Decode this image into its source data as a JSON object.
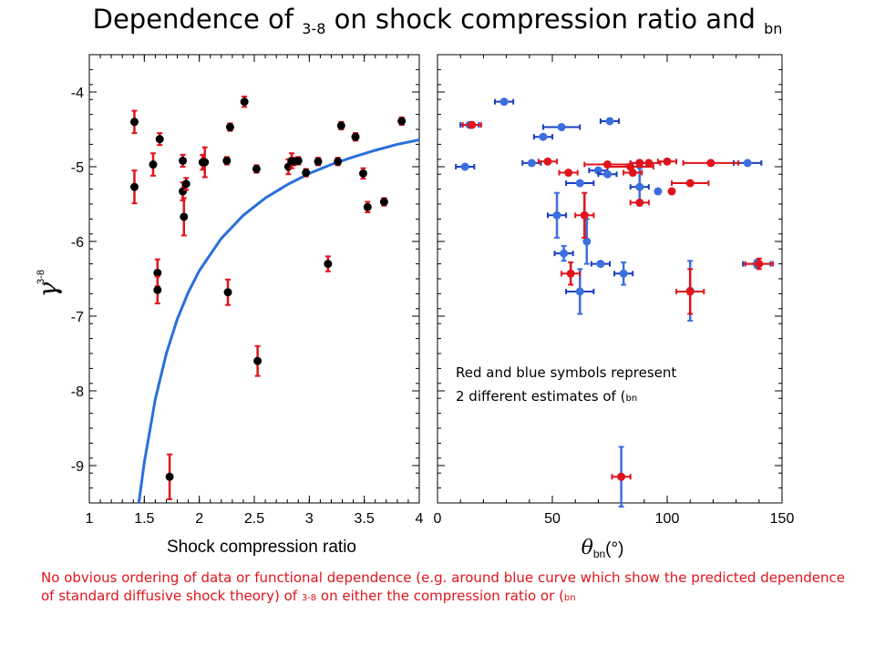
{
  "title": {
    "prefix": "Dependence of ",
    "gamma_symbol": "",
    "gamma_sub": "3-8",
    "middle": " on shock compression ratio and ",
    "theta_symbol": "",
    "theta_sub": "bn"
  },
  "annotation": {
    "line1": "Red and blue symbols represent",
    "line2_prefix": "2 different estimates of ",
    "symbol": "(",
    "sub": "bn"
  },
  "footnote": {
    "text": "No obvious ordering of data or functional dependence (e.g. around  blue curve which show the predicted dependence of standard diffusive shock theory) of ",
    "gamma_symbol": "",
    "gamma_sub": "3-8",
    "middle": " on either the compression ratio or ",
    "theta_symbol": "(",
    "theta_sub": "bn"
  },
  "colors": {
    "red": "#e0141c",
    "blue": "#3b6fe0",
    "black": "#000000",
    "curve": "#2a6fdb"
  },
  "chart_data": [
    {
      "type": "scatter",
      "xlabel": "Shock compression ratio",
      "ylabel_symbol": "γ",
      "ylabel_sub": "3-8",
      "xlim": [
        1,
        4
      ],
      "ylim": [
        -9.5,
        -3.5
      ],
      "xticks": [
        1,
        1.5,
        2,
        2.5,
        3,
        3.5,
        4
      ],
      "xtick_labels": [
        "1",
        "1.5",
        "2",
        "2.5",
        "3",
        "3.5",
        "4"
      ],
      "yticks": [
        -9,
        -8,
        -7,
        -6,
        -5,
        -4
      ],
      "ytick_labels": [
        "-9",
        "-8",
        "-7",
        "-6",
        "-5",
        "-4"
      ],
      "curve": {
        "name": "predicted dependence of standard diffusive shock theory",
        "x": [
          1.45,
          1.5,
          1.6,
          1.7,
          1.8,
          1.9,
          2.0,
          2.2,
          2.4,
          2.6,
          2.8,
          3.0,
          3.2,
          3.4,
          3.6,
          3.8,
          4.0
        ],
        "y": [
          -9.5,
          -8.96,
          -8.11,
          -7.5,
          -7.04,
          -6.68,
          -6.39,
          -5.96,
          -5.65,
          -5.42,
          -5.24,
          -5.09,
          -4.97,
          -4.87,
          -4.78,
          -4.7,
          -4.64
        ]
      },
      "points": [
        {
          "x": 1.41,
          "y": -4.4,
          "err": 0.15
        },
        {
          "x": 1.41,
          "y": -5.27,
          "err": 0.22
        },
        {
          "x": 1.58,
          "y": -4.97,
          "err": 0.15
        },
        {
          "x": 1.62,
          "y": -6.42,
          "err": 0.18
        },
        {
          "x": 1.62,
          "y": -6.65,
          "err": 0.18
        },
        {
          "x": 1.64,
          "y": -4.63,
          "err": 0.08
        },
        {
          "x": 1.73,
          "y": -9.15,
          "err": 0.3
        },
        {
          "x": 1.85,
          "y": -4.92,
          "err": 0.08
        },
        {
          "x": 1.85,
          "y": -5.33,
          "err": 0.12
        },
        {
          "x": 1.86,
          "y": -5.67,
          "err": 0.25
        },
        {
          "x": 1.88,
          "y": -5.23,
          "err": 0.08
        },
        {
          "x": 2.03,
          "y": -4.94,
          "err": 0.1
        },
        {
          "x": 2.05,
          "y": -4.94,
          "err": 0.2
        },
        {
          "x": 2.25,
          "y": -4.92,
          "err": 0.05
        },
        {
          "x": 2.26,
          "y": -6.68,
          "err": 0.17
        },
        {
          "x": 2.28,
          "y": -4.47,
          "err": 0.05
        },
        {
          "x": 2.41,
          "y": -4.13,
          "err": 0.07
        },
        {
          "x": 2.52,
          "y": -5.03,
          "err": 0.05
        },
        {
          "x": 2.53,
          "y": -7.6,
          "err": 0.2
        },
        {
          "x": 2.81,
          "y": -5.0,
          "err": 0.1
        },
        {
          "x": 2.84,
          "y": -4.92,
          "err": 0.1
        },
        {
          "x": 2.86,
          "y": -4.93,
          "err": 0.05
        },
        {
          "x": 2.9,
          "y": -4.92,
          "err": 0.05
        },
        {
          "x": 2.97,
          "y": -5.08,
          "err": 0.05
        },
        {
          "x": 3.08,
          "y": -4.93,
          "err": 0.05
        },
        {
          "x": 3.17,
          "y": -6.3,
          "err": 0.1
        },
        {
          "x": 3.26,
          "y": -4.93,
          "err": 0.05
        },
        {
          "x": 3.29,
          "y": -4.45,
          "err": 0.05
        },
        {
          "x": 3.42,
          "y": -4.6,
          "err": 0.05
        },
        {
          "x": 3.49,
          "y": -5.09,
          "err": 0.07
        },
        {
          "x": 3.53,
          "y": -5.54,
          "err": 0.07
        },
        {
          "x": 3.68,
          "y": -5.47,
          "err": 0.05
        },
        {
          "x": 3.84,
          "y": -4.39,
          "err": 0.05
        }
      ]
    },
    {
      "type": "scatter",
      "xlabel_symbol": "θ",
      "xlabel_sub": "bn",
      "xlabel_unit": "(°)",
      "xlim": [
        0,
        150
      ],
      "ylim": [
        -9.5,
        -3.5
      ],
      "xticks": [
        0,
        50,
        100,
        150
      ],
      "xtick_labels": [
        "0",
        "50",
        "100",
        "150"
      ],
      "series": [
        {
          "color": "red",
          "points": [
            {
              "x": 15,
              "y": -4.44,
              "xerr": 4,
              "yerr": 0
            },
            {
              "x": 48,
              "y": -4.93,
              "xerr": 4,
              "yerr": 0
            },
            {
              "x": 57,
              "y": -5.08,
              "xerr": 4,
              "yerr": 0
            },
            {
              "x": 58,
              "y": -6.43,
              "xerr": 4,
              "yerr": 0.15
            },
            {
              "x": 64,
              "y": -5.65,
              "xerr": 4,
              "yerr": 0.3
            },
            {
              "x": 74,
              "y": -4.97,
              "xerr": 10,
              "yerr": 0
            },
            {
              "x": 80,
              "y": -9.15,
              "xerr": 4,
              "yerr": 0
            },
            {
              "x": 84,
              "y": -5.0,
              "xerr": 10,
              "yerr": 0
            },
            {
              "x": 85,
              "y": -5.08,
              "xerr": 4,
              "yerr": 0
            },
            {
              "x": 88,
              "y": -4.95,
              "xerr": 4,
              "yerr": 0
            },
            {
              "x": 88,
              "y": -5.48,
              "xerr": 4,
              "yerr": 0
            },
            {
              "x": 92,
              "y": -4.95,
              "xerr": 5,
              "yerr": 0
            },
            {
              "x": 100,
              "y": -4.93,
              "xerr": 4,
              "yerr": 0
            },
            {
              "x": 102,
              "y": -5.33,
              "xerr": 0,
              "yerr": 0
            },
            {
              "x": 110,
              "y": -6.67,
              "xerr": 6,
              "yerr": 0.3
            },
            {
              "x": 110,
              "y": -5.22,
              "xerr": 8,
              "yerr": 0
            },
            {
              "x": 119,
              "y": -4.95,
              "xerr": 12,
              "yerr": 0
            },
            {
              "x": 140,
              "y": -6.3,
              "xerr": 6,
              "yerr": 0.07
            }
          ]
        },
        {
          "color": "blue",
          "points": [
            {
              "x": 12,
              "y": -5.0,
              "xerr": 4,
              "yerr": 0
            },
            {
              "x": 14,
              "y": -4.44,
              "xerr": 4,
              "yerr": 0
            },
            {
              "x": 29,
              "y": -4.13,
              "xerr": 4,
              "yerr": 0
            },
            {
              "x": 41,
              "y": -4.95,
              "xerr": 4,
              "yerr": 0
            },
            {
              "x": 46,
              "y": -4.6,
              "xerr": 4,
              "yerr": 0
            },
            {
              "x": 52,
              "y": -5.65,
              "xerr": 4,
              "yerr": 0.3
            },
            {
              "x": 54,
              "y": -4.47,
              "xerr": 8,
              "yerr": 0
            },
            {
              "x": 55,
              "y": -6.16,
              "xerr": 4,
              "yerr": 0.1
            },
            {
              "x": 62,
              "y": -5.22,
              "xerr": 6,
              "yerr": 0
            },
            {
              "x": 62,
              "y": -6.67,
              "xerr": 6,
              "yerr": 0.3
            },
            {
              "x": 65,
              "y": -6.0,
              "xerr": 0,
              "yerr": 0.3
            },
            {
              "x": 70,
              "y": -5.05,
              "xerr": 4,
              "yerr": 0
            },
            {
              "x": 71,
              "y": -6.3,
              "xerr": 4,
              "yerr": 0
            },
            {
              "x": 74,
              "y": -5.1,
              "xerr": 4,
              "yerr": 0
            },
            {
              "x": 75,
              "y": -4.39,
              "xerr": 4,
              "yerr": 0
            },
            {
              "x": 80,
              "y": -9.15,
              "xerr": 0,
              "yerr": 0.4
            },
            {
              "x": 81,
              "y": -6.43,
              "xerr": 4,
              "yerr": 0.15
            },
            {
              "x": 88,
              "y": -4.95,
              "xerr": 4,
              "yerr": 0
            },
            {
              "x": 88,
              "y": -5.27,
              "xerr": 4,
              "yerr": 0.25
            },
            {
              "x": 96,
              "y": -5.33,
              "xerr": 0,
              "yerr": 0
            },
            {
              "x": 110,
              "y": -6.66,
              "xerr": 0,
              "yerr": 0.4
            },
            {
              "x": 135,
              "y": -4.95,
              "xerr": 6,
              "yerr": 0
            },
            {
              "x": 139,
              "y": -6.3,
              "xerr": 6,
              "yerr": 0.05
            }
          ]
        }
      ]
    }
  ]
}
